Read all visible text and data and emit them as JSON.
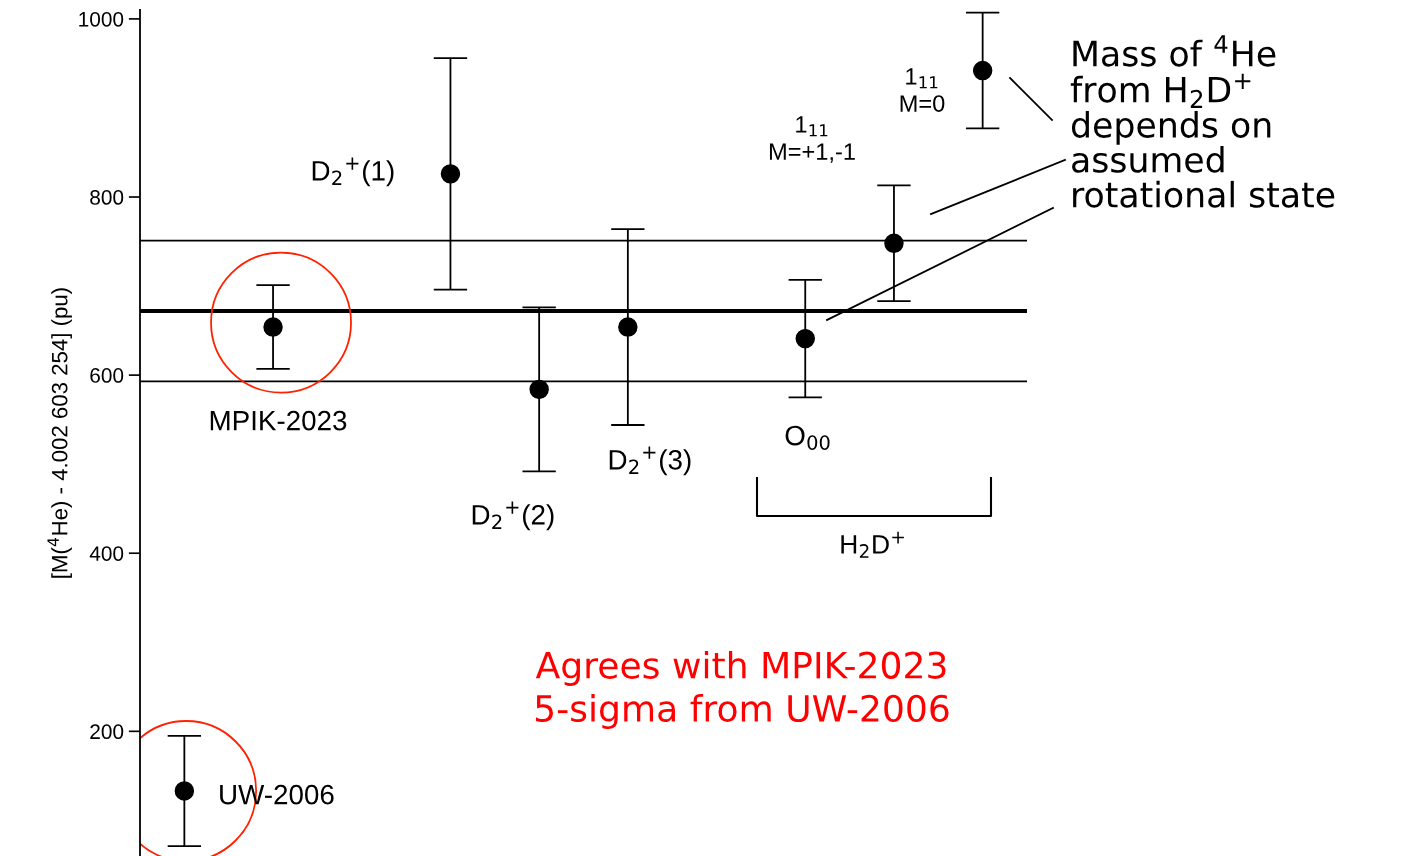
{
  "chart_data": {
    "type": "scatter",
    "ylabel": "[M($^{4}$He) - 4.002 603 254] (pu)",
    "categories": [
      null,
      null,
      null,
      null,
      null,
      null,
      null,
      null,
      null,
      null
    ],
    "series": [
      {
        "color": "#000000",
        "values": [
          133,
          654,
          null,
          826,
          584,
          654,
          null,
          641,
          748,
          942
        ],
        "errors": [
          62,
          47,
          null,
          130,
          92,
          110,
          null,
          66,
          65,
          65
        ]
      }
    ],
    "ylim": [
      60,
      1010
    ],
    "yticks": [
      200,
      400,
      600,
      800,
      1000
    ],
    "ref_lines": [
      {
        "axis": "y",
        "value": 751,
        "color": "#000000",
        "line_style": "solid"
      },
      {
        "axis": "y",
        "value": 672,
        "color": "#000000",
        "line_style": "solid"
      },
      {
        "axis": "y",
        "value": 593,
        "color": "#000000",
        "line_style": "solid"
      }
    ],
    "marker": "circle",
    "grid": false,
    "legend": false,
    "annotations": [
      "UW-2006",
      "MPIK-2023",
      "D$_{2}$$^{+}$(1)",
      "D$_{2}$$^{+}$(2)",
      "D$_{2}$$^{+}$(3)",
      "O$_{00}$",
      "1$_{11}$\nM=+1,-1",
      "1$_{11}$\nM=0",
      "H$_{2}$D$^{+}$",
      "Mass of $^{4}$He\nfrom H$_{2}$D$^{+}$\ndepends on\nassumed\nrotational state",
      "Agrees with MPIK-2023\n5-sigma from UW-2006"
    ]
  }
}
